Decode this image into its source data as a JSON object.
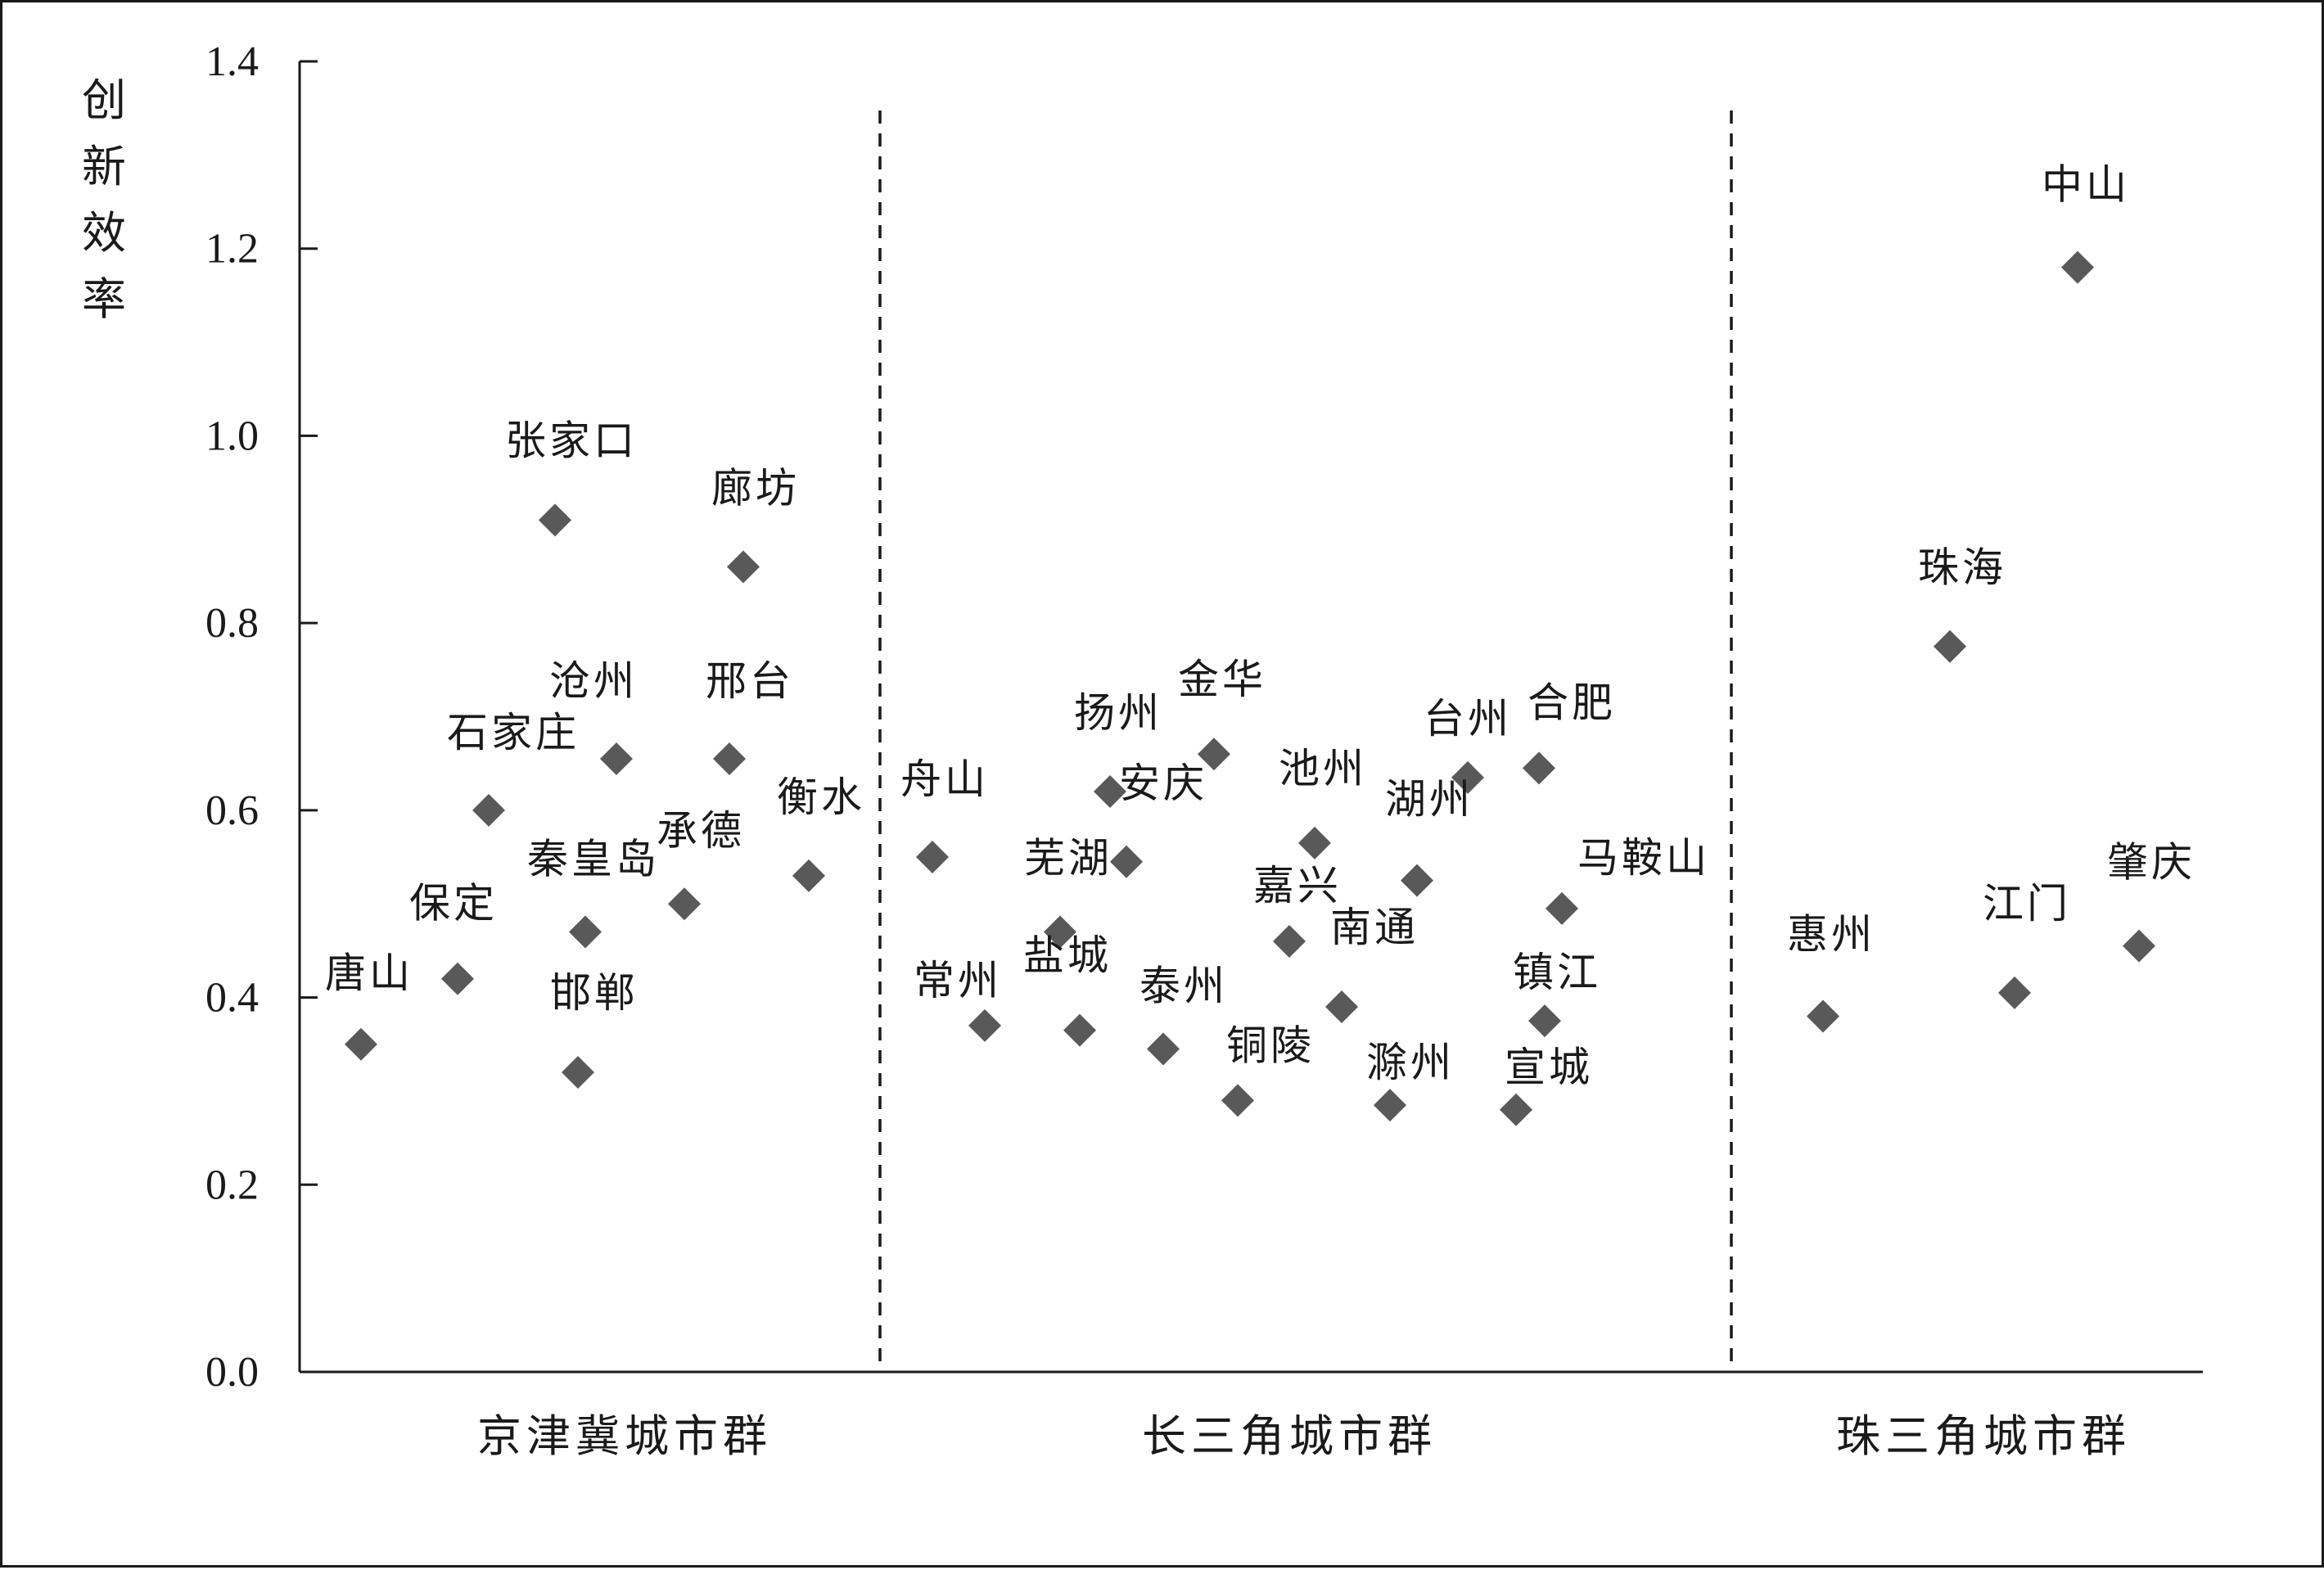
{
  "chart_data": {
    "type": "scatter",
    "title": "",
    "xlabel": "",
    "ylabel": "创新效率",
    "ylim": [
      0,
      1.4
    ],
    "yticks": [
      "0.0",
      "0.2",
      "0.4",
      "0.6",
      "0.8",
      "1.0",
      "1.2",
      "1.4"
    ],
    "grid": false,
    "groups": [
      "京津冀城市群",
      "长三角城市群",
      "珠三角城市群"
    ],
    "series": [
      {
        "group": "京津冀城市群",
        "points": [
          {
            "label": "唐山",
            "y": 0.35
          },
          {
            "label": "保定",
            "y": 0.42
          },
          {
            "label": "石家庄",
            "y": 0.6
          },
          {
            "label": "张家口",
            "y": 0.91
          },
          {
            "label": "邯郸",
            "y": 0.32
          },
          {
            "label": "秦皇岛",
            "y": 0.47
          },
          {
            "label": "沧州",
            "y": 0.655
          },
          {
            "label": "承德",
            "y": 0.5
          },
          {
            "label": "邢台",
            "y": 0.655
          },
          {
            "label": "廊坊",
            "y": 0.86
          },
          {
            "label": "衡水",
            "y": 0.53
          }
        ]
      },
      {
        "group": "长三角城市群",
        "points": [
          {
            "label": "舟山",
            "y": 0.55
          },
          {
            "label": "常州",
            "y": 0.37
          },
          {
            "label": "芜湖",
            "y": 0.47
          },
          {
            "label": "盐城",
            "y": 0.365
          },
          {
            "label": "扬州",
            "y": 0.62
          },
          {
            "label": "安庆",
            "y": 0.545
          },
          {
            "label": "泰州",
            "y": 0.345
          },
          {
            "label": "金华",
            "y": 0.66
          },
          {
            "label": "铜陵",
            "y": 0.29
          },
          {
            "label": "嘉兴",
            "y": 0.46
          },
          {
            "label": "池州",
            "y": 0.565
          },
          {
            "label": "南通",
            "y": 0.39
          },
          {
            "label": "滁州",
            "y": 0.285
          },
          {
            "label": "湖州",
            "y": 0.525
          },
          {
            "label": "台州",
            "y": 0.635
          },
          {
            "label": "宣城",
            "y": 0.28
          },
          {
            "label": "合肥",
            "y": 0.645
          },
          {
            "label": "镇江",
            "y": 0.375
          },
          {
            "label": "马鞍山",
            "y": 0.495
          }
        ]
      },
      {
        "group": "珠三角城市群",
        "points": [
          {
            "label": "惠州",
            "y": 0.38
          },
          {
            "label": "珠海",
            "y": 0.775
          },
          {
            "label": "江门",
            "y": 0.405
          },
          {
            "label": "中山",
            "y": 1.18
          },
          {
            "label": "肇庆",
            "y": 0.455
          }
        ]
      }
    ],
    "marker": {
      "shape": "diamond",
      "color": "#595959"
    }
  }
}
